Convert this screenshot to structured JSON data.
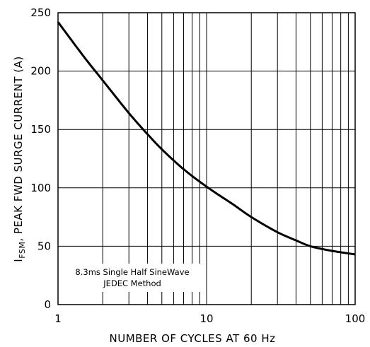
{
  "chart_data": {
    "type": "line",
    "title": "",
    "xlabel": "NUMBER OF CYCLES AT 60 Hz",
    "ylabel_main": "I",
    "ylabel_sub": "FSM",
    "ylabel_rest": ", PEAK FWD SURGE CURRENT (A)",
    "x_scale": "log",
    "xlim": [
      1,
      100
    ],
    "ylim": [
      0,
      250
    ],
    "x_ticks": [
      1,
      10,
      100
    ],
    "x_tick_labels": [
      "1",
      "10",
      "100"
    ],
    "y_ticks": [
      0,
      50,
      100,
      150,
      200,
      250
    ],
    "y_tick_labels": [
      "0",
      "50",
      "100",
      "150",
      "200",
      "250"
    ],
    "grid": true,
    "annotation": {
      "line1": "8.3ms Single Half SineWave",
      "line2": "JEDEC Method"
    },
    "series": [
      {
        "x": [
          1,
          1.5,
          2,
          3,
          4,
          5,
          7,
          10,
          15,
          20,
          30,
          40,
          50,
          70,
          100
        ],
        "values": [
          242,
          212,
          192,
          164,
          146,
          133,
          116,
          101,
          86,
          75,
          62,
          55,
          50,
          46,
          43
        ]
      }
    ]
  }
}
